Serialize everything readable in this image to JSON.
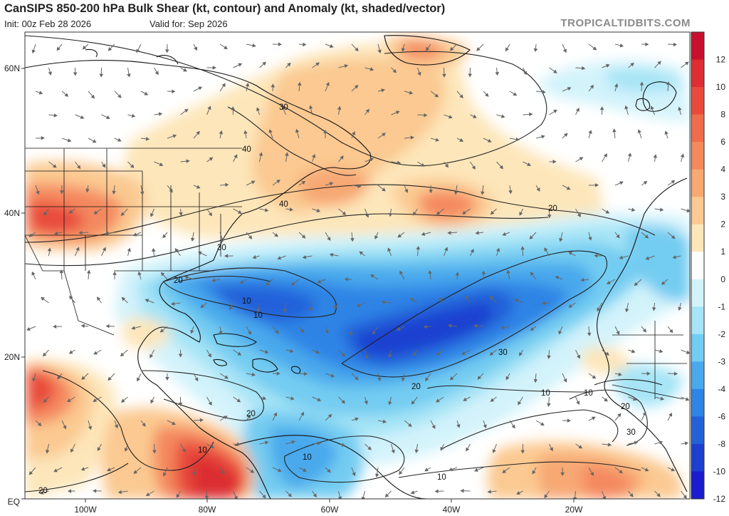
{
  "header": {
    "title": "CanSIPS 850-200 hPa Bulk Shear (kt, contour) and Anomaly (kt, shaded/vector)",
    "init": "Init: 00z Feb 28 2026",
    "valid": "Valid for: Sep 2026",
    "source": "TROPICALTIDBITS.COM"
  },
  "axes": {
    "lat_labels": [
      "60N",
      "40N",
      "20N",
      "EQ"
    ],
    "lon_labels": [
      "100W",
      "80W",
      "60W",
      "40W",
      "20W"
    ]
  },
  "colorbar": {
    "labels": [
      "12",
      "10",
      "8",
      "6",
      "4",
      "3",
      "2",
      "1",
      "0",
      "-1",
      "-2",
      "-3",
      "-4",
      "-6",
      "-8",
      "-10",
      "-12"
    ],
    "colors": [
      "#c8102e",
      "#dc2e33",
      "#e84b3c",
      "#ef6d4c",
      "#f4895e",
      "#f7a873",
      "#fbc991",
      "#fde6ba",
      "#ffffff",
      "#d3f3fb",
      "#a6e4f6",
      "#73ccf1",
      "#4aa9ec",
      "#2f84e5",
      "#2361d9",
      "#1c3fd0",
      "#1a1ccd"
    ]
  },
  "contour_labels": [
    "30",
    "40",
    "40",
    "20",
    "30",
    "20",
    "10",
    "10",
    "20",
    "30",
    "20",
    "10",
    "10",
    "20",
    "30",
    "20",
    "10",
    "10",
    "10",
    "20",
    "20"
  ]
}
